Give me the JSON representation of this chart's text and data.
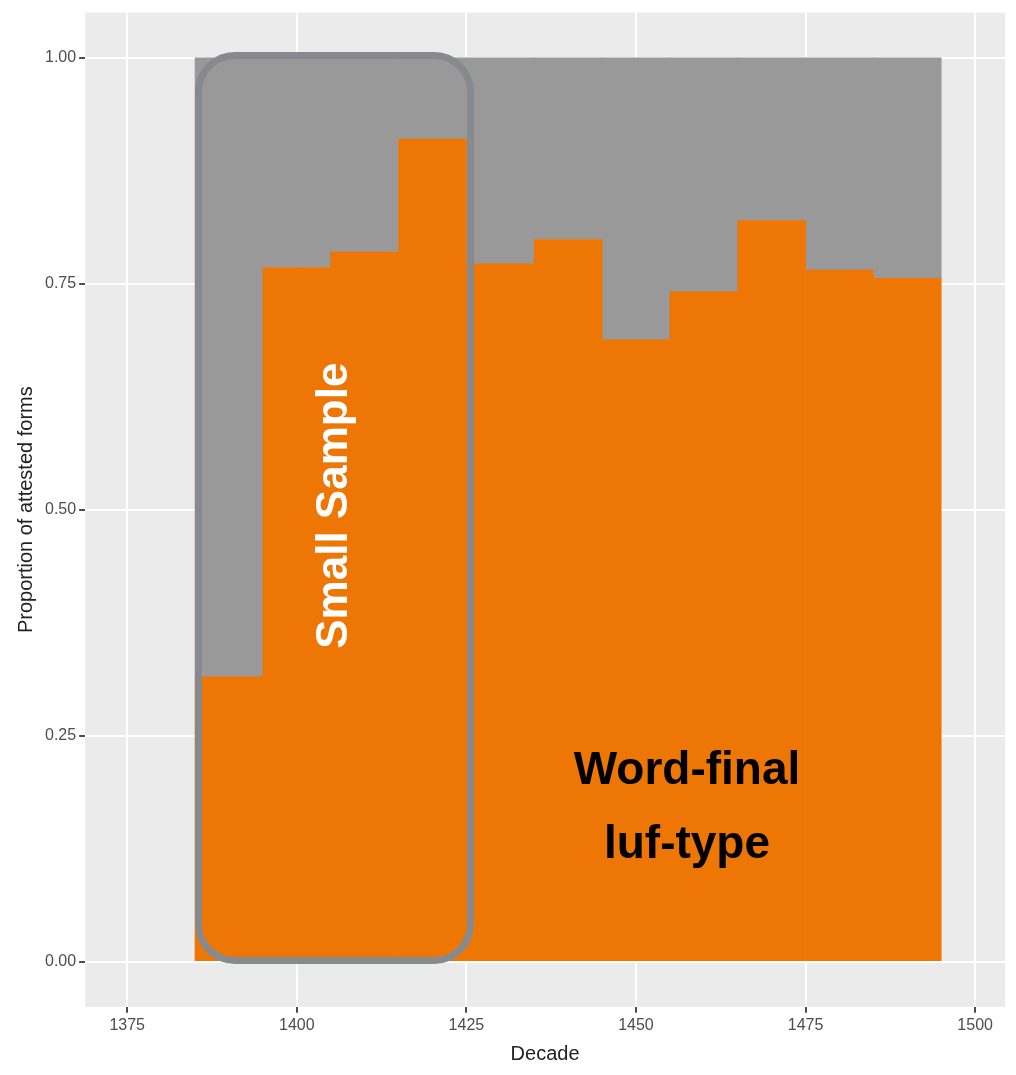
{
  "chart_data": {
    "type": "bar",
    "stacked": true,
    "x": [
      1390,
      1400,
      1410,
      1420,
      1430,
      1440,
      1450,
      1460,
      1470,
      1480,
      1490
    ],
    "series": [
      {
        "color": "#ee7605",
        "values": [
          0.315,
          0.768,
          0.785,
          0.91,
          0.772,
          0.799,
          0.688,
          0.741,
          0.82,
          0.765,
          0.756
        ]
      },
      {
        "color": "#999999",
        "values": [
          0.685,
          0.232,
          0.215,
          0.09,
          0.228,
          0.201,
          0.312,
          0.259,
          0.18,
          0.235,
          0.244
        ]
      }
    ],
    "xlabel": "Decade",
    "ylabel": "Proportion of attested forms",
    "xlim": [
      1368.8,
      1504.4
    ],
    "xticks": [
      1375,
      1400,
      1425,
      1450,
      1475,
      1500
    ],
    "ylim": [
      -0.05,
      1.05
    ],
    "yticks": [
      {
        "value": 0,
        "label": "0.00"
      },
      {
        "value": 0.25,
        "label": "0.25"
      },
      {
        "value": 0.5,
        "label": "0.50"
      },
      {
        "value": 0.75,
        "label": "0.75"
      },
      {
        "value": 1,
        "label": "1.00"
      }
    ],
    "grid": true,
    "legend": false,
    "annotations": [
      "Small Sample",
      "Word-final luf-type"
    ]
  }
}
